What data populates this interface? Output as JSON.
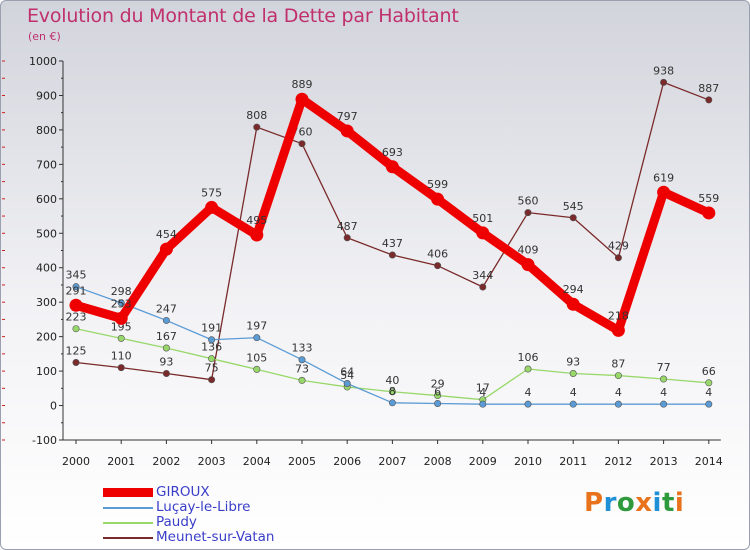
{
  "header": {
    "title": "Evolution du Montant de la Dette par Habitant",
    "subtitle": "(en €)"
  },
  "brand": {
    "letters": [
      "P",
      "r",
      "o",
      "x",
      "i",
      "t",
      "i"
    ],
    "colors": [
      "#e8731c",
      "#1f8fd6",
      "#2e9a3c",
      "#e8731c",
      "#1f8fd6",
      "#2e9a3c",
      "#e8731c"
    ]
  },
  "chart_data": {
    "type": "line",
    "title": "Evolution du Montant de la Dette par Habitant",
    "subtitle": "(en €)",
    "xlabel": "",
    "ylabel": "",
    "x": [
      "2000",
      "2001",
      "2002",
      "2003",
      "2004",
      "2005",
      "2006",
      "2007",
      "2008",
      "2009",
      "2010",
      "2011",
      "2012",
      "2013",
      "2014"
    ],
    "ylim": [
      -100,
      1000
    ],
    "yticks": [
      -100,
      0,
      100,
      200,
      300,
      400,
      500,
      600,
      700,
      800,
      900,
      1000
    ],
    "grid": false,
    "legend": "bottom-left",
    "series": [
      {
        "name": "Meunet-sur-Vatan",
        "color": "#7a2a2a",
        "values": [
          125,
          110,
          93,
          75,
          808,
          760,
          487,
          437,
          406,
          344,
          560,
          545,
          429,
          938,
          887
        ]
      },
      {
        "name": "Paudy",
        "color": "#98d86a",
        "values": [
          223,
          195,
          167,
          136,
          105,
          73,
          54,
          40,
          29,
          17,
          106,
          93,
          87,
          77,
          66
        ]
      },
      {
        "name": "Luçay-le-Libre",
        "color": "#5b9bd5",
        "values": [
          345,
          298,
          247,
          191,
          197,
          133,
          64,
          8,
          6,
          4,
          4,
          4,
          4,
          4,
          4
        ]
      },
      {
        "name": "GIROUX",
        "color": "#ef0000",
        "values": [
          291,
          253,
          454,
          575,
          495,
          889,
          797,
          693,
          599,
          501,
          409,
          294,
          218,
          619,
          559
        ]
      }
    ]
  },
  "legend": {
    "items": [
      {
        "label": "GIROUX",
        "color": "#ef0000"
      },
      {
        "label": "Luçay-le-Libre",
        "color": "#5b9bd5"
      },
      {
        "label": "Paudy",
        "color": "#98d86a"
      },
      {
        "label": "Meunet-sur-Vatan",
        "color": "#7a2a2a"
      }
    ]
  }
}
